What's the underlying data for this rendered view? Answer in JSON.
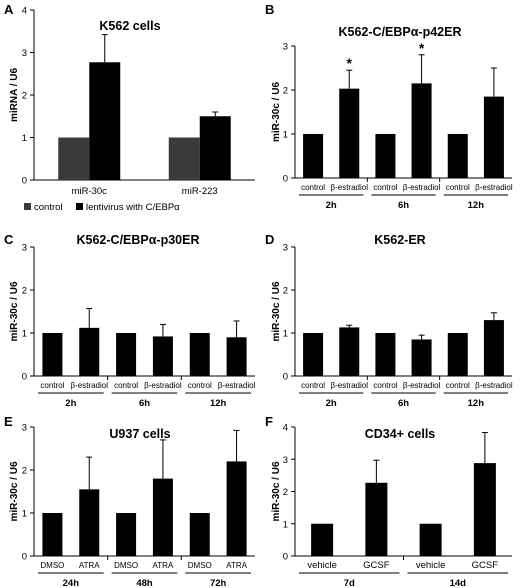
{
  "chart_data": [
    {
      "panel": "A",
      "type": "bar",
      "title": "K562 cells",
      "ylabel": "miRNA / U6",
      "ylim": [
        0,
        4
      ],
      "yticks": [
        "0",
        "1",
        "2",
        "3",
        "4"
      ],
      "categories": [
        "miR-30c",
        "miR-223"
      ],
      "series": [
        {
          "name": "control",
          "values": [
            1.0,
            1.0
          ],
          "errors": [
            0,
            0
          ],
          "color": "#3a3a3a"
        },
        {
          "name": "lentivirus with C/EBPα",
          "values": [
            2.77,
            1.5
          ],
          "errors": [
            0.65,
            0.1
          ],
          "color": "#000000"
        }
      ]
    },
    {
      "panel": "B",
      "type": "bar",
      "title": "K562-C/EBPα-p42ER",
      "ylabel": "miR-30c / U6",
      "ylim": [
        0,
        3
      ],
      "yticks": [
        "0",
        "1",
        "2",
        "3"
      ],
      "categories": [
        "control",
        "β-estradiol",
        "control",
        "β-estradiol",
        "control",
        "β-estradiol"
      ],
      "groups": [
        "2h",
        "6h",
        "12h"
      ],
      "values": [
        1.0,
        2.03,
        1.0,
        2.15,
        1.0,
        1.85
      ],
      "errors": [
        0,
        0.42,
        0,
        0.65,
        0,
        0.65
      ],
      "annotations": [
        "",
        "*",
        "",
        "*",
        "",
        ""
      ]
    },
    {
      "panel": "C",
      "type": "bar",
      "title": "K562-C/EBPα-p30ER",
      "ylabel": "miR-30c / U6",
      "ylim": [
        0,
        3
      ],
      "yticks": [
        "0",
        "1",
        "2",
        "3"
      ],
      "categories": [
        "control",
        "β-estradiol",
        "control",
        "β-estradiol",
        "control",
        "β-estradiol"
      ],
      "groups": [
        "2h",
        "6h",
        "12h"
      ],
      "values": [
        1.0,
        1.12,
        1.0,
        0.92,
        1.0,
        0.9
      ],
      "errors": [
        0,
        0.45,
        0,
        0.28,
        0,
        0.38
      ]
    },
    {
      "panel": "D",
      "type": "bar",
      "title": "K562-ER",
      "ylabel": "miR-30c / U6",
      "ylim": [
        0,
        3
      ],
      "yticks": [
        "0",
        "1",
        "2",
        "3"
      ],
      "categories": [
        "control",
        "β-estradiol",
        "control",
        "β-estradiol",
        "control",
        "β-estradiol"
      ],
      "groups": [
        "2h",
        "6h",
        "12h"
      ],
      "values": [
        1.0,
        1.13,
        1.0,
        0.85,
        1.0,
        1.3
      ],
      "errors": [
        0,
        0.05,
        0,
        0.1,
        0,
        0.17
      ]
    },
    {
      "panel": "E",
      "type": "bar",
      "title": "U937  cells",
      "ylabel": "miR-30c / U6",
      "ylim": [
        0,
        3
      ],
      "yticks": [
        "0",
        "1",
        "2",
        "3"
      ],
      "categories": [
        "DMSO",
        "ATRA",
        "DMSO",
        "ATRA",
        "DMSO",
        "ATRA"
      ],
      "groups": [
        "24h",
        "48h",
        "72h"
      ],
      "values": [
        1.0,
        1.55,
        1.0,
        1.8,
        1.0,
        2.2
      ],
      "errors": [
        0,
        0.75,
        0,
        0.9,
        0,
        0.72
      ]
    },
    {
      "panel": "F",
      "type": "bar",
      "title": "CD34+  cells",
      "ylabel": "miR-30c / U6",
      "ylim": [
        0,
        4
      ],
      "yticks": [
        "0",
        "1",
        "2",
        "3",
        "4"
      ],
      "categories": [
        "vehicle",
        "GCSF",
        "vehicle",
        "GCSF"
      ],
      "groups": [
        "7d",
        "14d"
      ],
      "values": [
        1.0,
        2.27,
        1.0,
        2.88
      ],
      "errors": [
        0,
        0.7,
        0,
        0.95
      ]
    }
  ]
}
